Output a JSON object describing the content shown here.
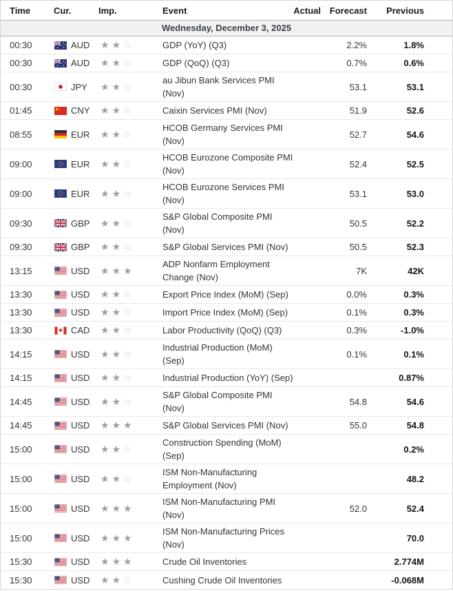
{
  "colors": {
    "star_filled": "#9e9e9e",
    "star_empty": "#cfcfcf",
    "date_row_bg": "#f1f1f1",
    "row_border": "#e8e8e8",
    "band_border": "#b3b3b3",
    "previous_text": "#141414",
    "body_text": "#333333"
  },
  "table": {
    "columns": {
      "time": "Time",
      "cur": "Cur.",
      "imp": "Imp.",
      "event": "Event",
      "actual": "Actual",
      "forecast": "Forecast",
      "previous": "Previous"
    },
    "date_header": "Wednesday, December 3, 2025",
    "importance_max": 3,
    "rows": [
      {
        "time": "00:30",
        "currency": "AUD",
        "flag": "australia",
        "importance": 2,
        "event": "GDP (YoY) (Q3)",
        "actual": "",
        "forecast": "2.2%",
        "previous": "1.8%"
      },
      {
        "time": "00:30",
        "currency": "AUD",
        "flag": "australia",
        "importance": 2,
        "event": "GDP (QoQ) (Q3)",
        "actual": "",
        "forecast": "0.7%",
        "previous": "0.6%"
      },
      {
        "time": "00:30",
        "currency": "JPY",
        "flag": "japan",
        "importance": 2,
        "event": "au Jibun Bank Services PMI\n(Nov)",
        "actual": "",
        "forecast": "53.1",
        "previous": "53.1"
      },
      {
        "time": "01:45",
        "currency": "CNY",
        "flag": "china",
        "importance": 2,
        "event": "Caixin Services PMI (Nov)",
        "actual": "",
        "forecast": "51.9",
        "previous": "52.6"
      },
      {
        "time": "08:55",
        "currency": "EUR",
        "flag": "germany",
        "importance": 2,
        "event": "HCOB Germany Services PMI\n(Nov)",
        "actual": "",
        "forecast": "52.7",
        "previous": "54.6"
      },
      {
        "time": "09:00",
        "currency": "EUR",
        "flag": "european-union",
        "importance": 2,
        "event": "HCOB Eurozone Composite PMI\n(Nov)",
        "actual": "",
        "forecast": "52.4",
        "previous": "52.5"
      },
      {
        "time": "09:00",
        "currency": "EUR",
        "flag": "european-union",
        "importance": 2,
        "event": "HCOB Eurozone Services PMI\n(Nov)",
        "actual": "",
        "forecast": "53.1",
        "previous": "53.0"
      },
      {
        "time": "09:30",
        "currency": "GBP",
        "flag": "united-kingdom",
        "importance": 2,
        "event": "S&P Global Composite PMI\n(Nov)",
        "actual": "",
        "forecast": "50.5",
        "previous": "52.2"
      },
      {
        "time": "09:30",
        "currency": "GBP",
        "flag": "united-kingdom",
        "importance": 2,
        "event": "S&P Global Services PMI (Nov)",
        "actual": "",
        "forecast": "50.5",
        "previous": "52.3"
      },
      {
        "time": "13:15",
        "currency": "USD",
        "flag": "united-states",
        "importance": 3,
        "event": "ADP Nonfarm Employment\nChange (Nov)",
        "actual": "",
        "forecast": "7K",
        "previous": "42K"
      },
      {
        "time": "13:30",
        "currency": "USD",
        "flag": "united-states",
        "importance": 2,
        "event": "Export Price Index (MoM) (Sep)",
        "actual": "",
        "forecast": "0.0%",
        "previous": "0.3%"
      },
      {
        "time": "13:30",
        "currency": "USD",
        "flag": "united-states",
        "importance": 2,
        "event": "Import Price Index (MoM) (Sep)",
        "actual": "",
        "forecast": "0.1%",
        "previous": "0.3%"
      },
      {
        "time": "13:30",
        "currency": "CAD",
        "flag": "canada",
        "importance": 2,
        "event": "Labor Productivity (QoQ) (Q3)",
        "actual": "",
        "forecast": "0.3%",
        "previous": "-1.0%"
      },
      {
        "time": "14:15",
        "currency": "USD",
        "flag": "united-states",
        "importance": 2,
        "event": "Industrial Production (MoM)\n(Sep)",
        "actual": "",
        "forecast": "0.1%",
        "previous": "0.1%"
      },
      {
        "time": "14:15",
        "currency": "USD",
        "flag": "united-states",
        "importance": 2,
        "event": "Industrial Production (YoY) (Sep)",
        "actual": "",
        "forecast": "",
        "previous": "0.87%"
      },
      {
        "time": "14:45",
        "currency": "USD",
        "flag": "united-states",
        "importance": 2,
        "event": "S&P Global Composite PMI\n(Nov)",
        "actual": "",
        "forecast": "54.8",
        "previous": "54.6"
      },
      {
        "time": "14:45",
        "currency": "USD",
        "flag": "united-states",
        "importance": 3,
        "event": "S&P Global Services PMI (Nov)",
        "actual": "",
        "forecast": "55.0",
        "previous": "54.8"
      },
      {
        "time": "15:00",
        "currency": "USD",
        "flag": "united-states",
        "importance": 2,
        "event": "Construction Spending (MoM)\n(Sep)",
        "actual": "",
        "forecast": "",
        "previous": "0.2%"
      },
      {
        "time": "15:00",
        "currency": "USD",
        "flag": "united-states",
        "importance": 2,
        "event": "ISM Non-Manufacturing\nEmployment (Nov)",
        "actual": "",
        "forecast": "",
        "previous": "48.2"
      },
      {
        "time": "15:00",
        "currency": "USD",
        "flag": "united-states",
        "importance": 3,
        "event": "ISM Non-Manufacturing PMI\n(Nov)",
        "actual": "",
        "forecast": "52.0",
        "previous": "52.4"
      },
      {
        "time": "15:00",
        "currency": "USD",
        "flag": "united-states",
        "importance": 3,
        "event": "ISM Non-Manufacturing Prices\n(Nov)",
        "actual": "",
        "forecast": "",
        "previous": "70.0"
      },
      {
        "time": "15:30",
        "currency": "USD",
        "flag": "united-states",
        "importance": 3,
        "event": "Crude Oil Inventories",
        "actual": "",
        "forecast": "",
        "previous": "2.774M"
      },
      {
        "time": "15:30",
        "currency": "USD",
        "flag": "united-states",
        "importance": 2,
        "event": "Cushing Crude Oil Inventories",
        "actual": "",
        "forecast": "",
        "previous": "-0.068M"
      }
    ]
  }
}
